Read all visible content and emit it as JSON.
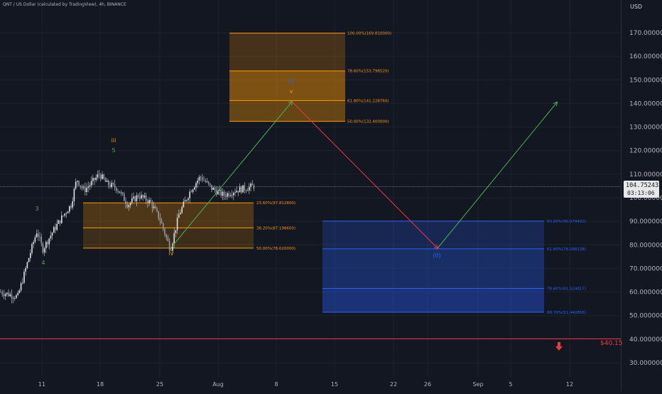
{
  "header": {
    "symbol_title": "QNT / US Dollar (calculated by TradingView), 4h, BINANCE",
    "currency": "USD"
  },
  "price_scale": {
    "labels": [
      "170.000000",
      "160.000000",
      "150.000000",
      "140.000000",
      "130.000000",
      "120.000000",
      "110.000000",
      "100.000000",
      "90.000000",
      "80.000000",
      "70.000000",
      "60.000000",
      "50.000000",
      "40.000000",
      "30.000000"
    ],
    "values": [
      170,
      160,
      150,
      140,
      130,
      120,
      110,
      100,
      90,
      80,
      70,
      60,
      50,
      40,
      30
    ]
  },
  "time_scale": {
    "labels": [
      "11",
      "18",
      "25",
      "Aug",
      "8",
      "15",
      "22",
      "26",
      "Sep",
      "5",
      "12"
    ]
  },
  "last_price": {
    "value": "104.752433",
    "countdown": "03:13:06"
  },
  "alert": {
    "label": "$40.15",
    "value": 40.15,
    "color": "#f23645"
  },
  "fib_upper": {
    "color": "#ff9800",
    "levels": [
      {
        "label": "100.00%(169.810000)",
        "value": 169.81
      },
      {
        "label": "78.60%(153.798520)",
        "value": 153.79852
      },
      {
        "label": "61.80%(141.228760)",
        "value": 141.22876
      },
      {
        "label": "50.00%(132.400000)",
        "value": 132.4
      }
    ]
  },
  "fib_middle": {
    "color": "#ff9800",
    "levels": [
      {
        "label": "23.60%(97.812800)",
        "value": 97.8128
      },
      {
        "label": "38.20%(87.198600)",
        "value": 87.1986
      },
      {
        "label": "50.00%(78.620000)",
        "value": 78.62
      }
    ]
  },
  "fib_lower": {
    "color": "#2962ff",
    "levels": [
      {
        "label": "50.00%(90.079400)",
        "value": 90.0794
      },
      {
        "label": "61.80%(78.298128)",
        "value": 78.298128
      },
      {
        "label": "78.60%(61.524817)",
        "value": 61.524817
      },
      {
        "label": "88.70%(51.440856)",
        "value": 51.440856
      }
    ]
  },
  "wave_labels": [
    {
      "text": "3",
      "color": "#4caf50"
    },
    {
      "text": "4",
      "color": "#4caf50"
    },
    {
      "text": "iii",
      "color": "#ff9800"
    },
    {
      "text": "5",
      "color": "#4caf50"
    },
    {
      "text": "iv",
      "color": "#ff9800"
    },
    {
      "text": "v",
      "color": "#ff9800"
    },
    {
      "text": "(I)",
      "color": "#2962ff"
    },
    {
      "text": "(II)",
      "color": "#2962ff"
    }
  ],
  "colors": {
    "background": "#131722",
    "up": "#26a69a",
    "candle": "#e0e0e0",
    "arrow_up": "#4caf50",
    "arrow_down": "#f23645",
    "grid": "#1e222d"
  }
}
